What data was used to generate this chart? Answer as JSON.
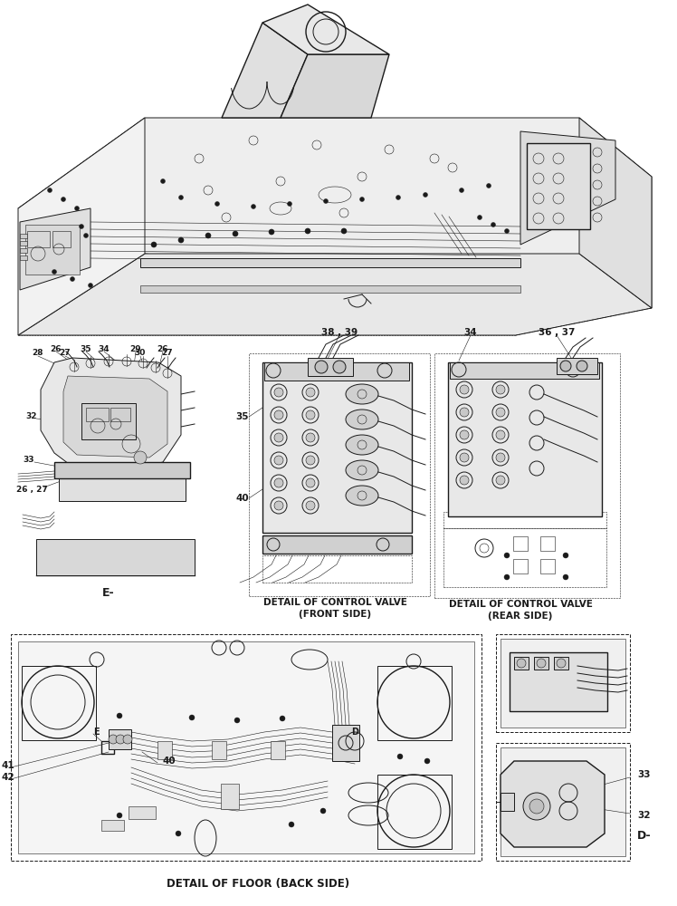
{
  "bg_color": "#ffffff",
  "lc": "#1a1a1a",
  "labels": {
    "detail_floor": "DETAIL OF FLOOR (BACK SIDE)",
    "valve_front_1": "DETAIL OF CONTROL VALVE",
    "valve_front_2": "(FRONT SIDE)",
    "valve_rear_1": "DETAIL OF CONTROL VALVE",
    "valve_rear_2": "(REAR SIDE)",
    "E_dash": "E-",
    "D_dash": "D-"
  },
  "figsize": [
    7.48,
    10.0
  ],
  "dpi": 100
}
